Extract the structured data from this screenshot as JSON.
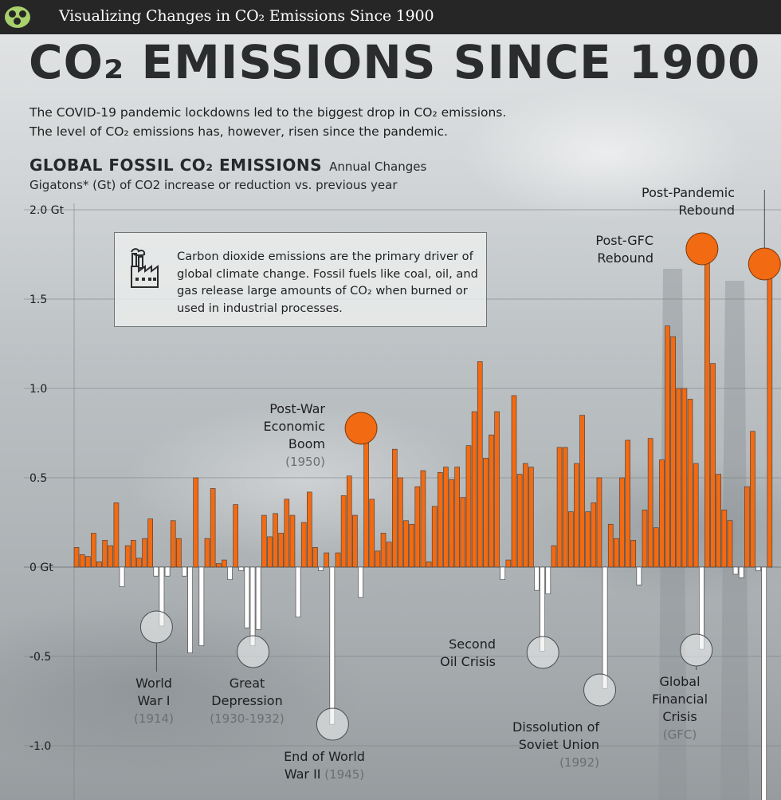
{
  "topbar": {
    "title": "Visualizing Changes in CO₂ Emissions Since 1900",
    "logo_icon": "visual-capitalist-logo-icon"
  },
  "header": {
    "title": "CO₂ EMISSIONS SINCE 1900",
    "subtitle_line1": "The COVID-19 pandemic lockdowns led to the biggest drop in CO₂ emissions.",
    "subtitle_line2": "The level of CO₂ emissions has, however, risen since the pandemic."
  },
  "chart_header": {
    "title": "GLOBAL FOSSIL CO₂ EMISSIONS",
    "title_suffix": "Annual Changes",
    "units": "Gigatons* (Gt) of CO2 increase or reduction vs. previous year"
  },
  "info_box": {
    "icon": "factory-icon",
    "text": "Carbon dioxide emissions are the primary driver of global climate change. Fossil fuels like coal, oil, and gas release large amounts of CO₂ when burned or used in industrial processes."
  },
  "colors": {
    "increase": "#f26a12",
    "decrease": "#ffffff",
    "bar_outline": "#3a3a3a",
    "grid": "#7d8285",
    "topbar": "#262626"
  },
  "chart_data": {
    "type": "bar",
    "title": "GLOBAL FOSSIL CO₂ EMISSIONS",
    "ylabel": "Gigatons* (Gt) of CO2 increase or reduction vs. previous year",
    "ylim": [
      -1.25,
      2.0
    ],
    "yticks": [
      {
        "value": 2.0,
        "label": "2.0 Gt"
      },
      {
        "value": 1.5,
        "label": "1.5"
      },
      {
        "value": 1.0,
        "label": "1.0"
      },
      {
        "value": 0.5,
        "label": "0.5"
      },
      {
        "value": 0,
        "label": "0 Gt"
      },
      {
        "value": -0.5,
        "label": "-0.5"
      },
      {
        "value": -1.0,
        "label": "-1.0"
      }
    ],
    "grid": true,
    "x_start_year": 1900,
    "x_end_year": 2022,
    "values": [
      0.11,
      0.07,
      0.06,
      0.19,
      0.03,
      0.15,
      0.12,
      0.36,
      -0.11,
      0.12,
      0.15,
      0.05,
      0.16,
      0.27,
      -0.05,
      -0.33,
      -0.05,
      0.26,
      0.16,
      -0.05,
      -0.48,
      0.5,
      -0.44,
      0.16,
      0.44,
      0.02,
      0.04,
      -0.07,
      0.35,
      -0.02,
      -0.34,
      -0.44,
      -0.35,
      0.29,
      0.17,
      0.3,
      0.19,
      0.38,
      0.29,
      -0.28,
      0.25,
      0.42,
      0.11,
      -0.02,
      0.08,
      -0.88,
      0.08,
      0.4,
      0.51,
      0.29,
      -0.17,
      0.77,
      0.38,
      0.09,
      0.19,
      0.14,
      0.66,
      0.5,
      0.26,
      0.24,
      0.45,
      0.54,
      0.03,
      0.34,
      0.53,
      0.56,
      0.49,
      0.56,
      0.39,
      0.68,
      0.87,
      1.15,
      0.61,
      0.74,
      0.87,
      -0.07,
      0.04,
      0.96,
      0.52,
      0.58,
      0.56,
      -0.13,
      -0.47,
      -0.15,
      0.12,
      0.67,
      0.67,
      0.31,
      0.58,
      0.85,
      0.31,
      0.36,
      0.5,
      -0.68,
      0.24,
      0.16,
      0.5,
      0.71,
      0.15,
      -0.1,
      0.32,
      0.72,
      0.22,
      0.6,
      1.35,
      1.29,
      1.0,
      1.0,
      0.94,
      0.58,
      -0.46,
      1.78,
      1.14,
      0.52,
      0.32,
      0.26,
      -0.04,
      -0.06,
      0.45,
      0.76,
      -0.02,
      -1.32,
      1.7
    ],
    "annotations": [
      {
        "label_lines": [
          "World",
          "War I"
        ],
        "year_text": "(1914)",
        "year": 1914,
        "kind": "drop"
      },
      {
        "label_lines": [
          "Great",
          "Depression"
        ],
        "year_text": "(1930-1932)",
        "year": 1931,
        "kind": "drop"
      },
      {
        "label_lines": [
          "End of World",
          "War II"
        ],
        "year_text": "(1945)",
        "year": 1945,
        "kind": "drop"
      },
      {
        "label_lines": [
          "Post-War",
          "Economic",
          "Boom"
        ],
        "year_text": "(1950)",
        "year": 1950,
        "kind": "rise"
      },
      {
        "label_lines": [
          "Second",
          "Oil Crisis"
        ],
        "year_text": "",
        "year": 1982,
        "kind": "drop"
      },
      {
        "label_lines": [
          "Dissolution of",
          "Soviet Union"
        ],
        "year_text": "(1992)",
        "year": 1992,
        "kind": "drop"
      },
      {
        "label_lines": [
          "Global",
          "Financial",
          "Crisis"
        ],
        "year_text": "(GFC)",
        "year": 2009,
        "kind": "drop"
      },
      {
        "label_lines": [
          "Post-GFC",
          "Rebound"
        ],
        "year_text": "",
        "year": 2010,
        "kind": "rise"
      },
      {
        "label_lines": [
          "Post-Pandemic",
          "Rebound"
        ],
        "year_text": "",
        "year": 2021,
        "kind": "rise"
      }
    ]
  }
}
